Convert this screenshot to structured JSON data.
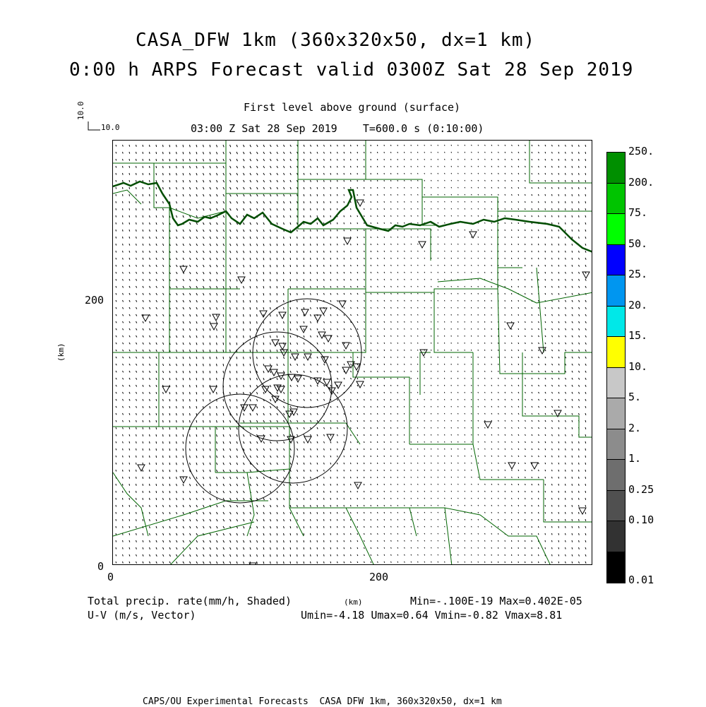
{
  "title_line1": "CASA_DFW 1km (360x320x50, dx=1 km)",
  "title_line2": "0:00 h ARPS Forecast valid 0300Z Sat 28 Sep 2019",
  "subtitle_line1": "First level above ground (surface)",
  "subtitle_line2": "03:00 Z Sat 28 Sep 2019    T=600.0 s (0:10:00)",
  "vector_ref_vertical": "10.0",
  "vector_ref_horizontal": "10.0",
  "y_axis_label": "(km)",
  "x_axis_label": "(km)",
  "y_ticks": [
    "200",
    "0"
  ],
  "x_ticks": [
    "0",
    "200"
  ],
  "bottom_left_line1": "Total precip. rate(mm/h, Shaded)",
  "bottom_left_line2": "U-V (m/s, Vector)",
  "bottom_right_line1": "Min=-.100E-19 Max=0.402E-05",
  "bottom_right_line2": "Umin=-4.18 Umax=0.64 Vmin=-0.82 Vmax=8.81",
  "footer": "CAPS/OU Experimental Forecasts  CASA DFW 1km, 360x320x50, dx=1 km",
  "colorbar": {
    "labels": [
      "250.",
      "200.",
      "75.",
      "50.",
      "25.",
      "20.",
      "15.",
      "10.",
      "5.",
      "2.",
      "1.",
      "0.25",
      "0.10",
      "0.01"
    ],
    "colors": [
      "#008f00",
      "#00c400",
      "#00ff00",
      "#0000ff",
      "#0096f0",
      "#00e8e8",
      "#ffff00",
      "#c8c8c8",
      "#aaaaaa",
      "#8c8c8c",
      "#6e6e6e",
      "#505050",
      "#323232",
      "#000000"
    ]
  },
  "map_colors": {
    "county_lines": "#006400",
    "river": "#004d00",
    "wind_vectors": "#000000"
  }
}
